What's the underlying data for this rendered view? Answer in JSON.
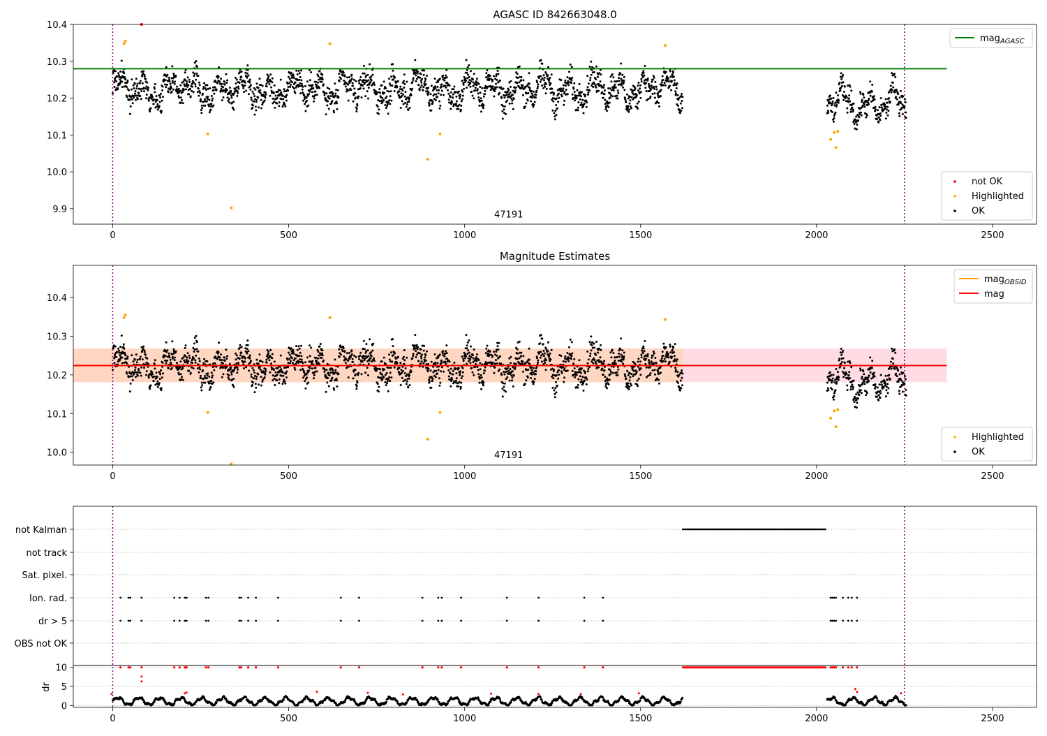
{
  "chart_data": [
    {
      "type": "scatter",
      "title": "AGASC ID 842663048.0",
      "xlabel": "",
      "ylabel": "",
      "xlim": [
        -112,
        2625
      ],
      "ylim": [
        9.858,
        10.4
      ],
      "xticks": [
        0,
        500,
        1000,
        1500,
        2000,
        2500
      ],
      "yticks": [
        9.9,
        10.0,
        10.1,
        10.2,
        10.3,
        10.4
      ],
      "ytick_labels": [
        "9.9",
        "10.0",
        "10.1",
        "10.2",
        "10.3",
        "10.4"
      ],
      "annotation": {
        "text": "47191",
        "x": 1125,
        "y": 9.876
      },
      "vlines": [
        0,
        2250
      ],
      "reference_line": {
        "name": "mag_AGASC",
        "value": 10.28,
        "x_range": [
          -112,
          2370
        ],
        "color": "#008000"
      },
      "legends": [
        {
          "position": "top-right",
          "entries": [
            {
              "label": "mag",
              "sub": "AGASC",
              "kind": "line",
              "color": "#008000"
            }
          ]
        },
        {
          "position": "bottom-right",
          "entries": [
            {
              "label": "not OK",
              "kind": "dot",
              "color": "#ff0000"
            },
            {
              "label": "Highlighted",
              "kind": "dot",
              "color": "#ffa500"
            },
            {
              "label": "OK",
              "kind": "dot",
              "color": "#000000"
            }
          ]
        }
      ],
      "series": [
        {
          "name": "not OK",
          "color": "#ff0000",
          "points": [
            [
              82,
              10.4
            ]
          ]
        },
        {
          "name": "Highlighted",
          "color": "#ffa500",
          "points": [
            [
              32,
              10.348
            ],
            [
              36,
              10.355
            ],
            [
              270,
              10.103
            ],
            [
              337,
              9.902
            ],
            [
              617,
              10.348
            ],
            [
              895,
              10.034
            ],
            [
              930,
              10.103
            ],
            [
              1570,
              10.343
            ],
            [
              2040,
              10.088
            ],
            [
              2050,
              10.107
            ],
            [
              2055,
              10.066
            ],
            [
              2060,
              10.11
            ]
          ]
        }
      ],
      "ok_segments": [
        {
          "x": [
            0,
            1620
          ],
          "mean": 10.225,
          "amp": 0.045,
          "noise": 0.028
        },
        {
          "x": [
            2030,
            2255
          ],
          "mean": 10.185,
          "amp": 0.05,
          "noise": 0.025
        }
      ]
    },
    {
      "type": "scatter",
      "title": "Magnitude Estimates",
      "xlabel": "",
      "ylabel": "",
      "xlim": [
        -112,
        2625
      ],
      "ylim": [
        9.967,
        10.483
      ],
      "xticks": [
        0,
        500,
        1000,
        1500,
        2000,
        2500
      ],
      "yticks": [
        10.0,
        10.1,
        10.2,
        10.3,
        10.4
      ],
      "ytick_labels": [
        "10.0",
        "10.1",
        "10.2",
        "10.3",
        "10.4"
      ],
      "annotation": {
        "text": "47191",
        "x": 1125,
        "y": 9.985
      },
      "vlines": [
        0,
        2250
      ],
      "mag_line": {
        "value": 10.224,
        "x_range": [
          -112,
          2370
        ],
        "color": "#ff0000"
      },
      "mag_band": {
        "low": 10.181,
        "high": 10.268,
        "x_range": [
          -112,
          2370
        ],
        "color": "#ffdce4"
      },
      "obsid_band": {
        "low": 10.181,
        "high": 10.268,
        "x_range": [
          -112,
          1620
        ],
        "color": "#ffd6c2"
      },
      "legends": [
        {
          "position": "top-right",
          "entries": [
            {
              "label": "mag",
              "sub": "OBSID",
              "kind": "line",
              "color": "#ffa500"
            },
            {
              "label": "mag",
              "kind": "line",
              "color": "#ff0000"
            }
          ]
        },
        {
          "position": "bottom-right",
          "entries": [
            {
              "label": "Highlighted",
              "kind": "dot",
              "color": "#ffa500"
            },
            {
              "label": "OK",
              "kind": "dot",
              "color": "#000000"
            }
          ]
        }
      ],
      "series": [
        {
          "name": "Highlighted",
          "color": "#ffa500",
          "points": [
            [
              32,
              10.348
            ],
            [
              36,
              10.355
            ],
            [
              270,
              10.103
            ],
            [
              337,
              9.97
            ],
            [
              617,
              10.348
            ],
            [
              895,
              10.034
            ],
            [
              930,
              10.103
            ],
            [
              1570,
              10.343
            ],
            [
              2040,
              10.088
            ],
            [
              2050,
              10.107
            ],
            [
              2055,
              10.066
            ],
            [
              2060,
              10.11
            ]
          ]
        }
      ],
      "ok_segments": [
        {
          "x": [
            0,
            1620
          ],
          "mean": 10.225,
          "amp": 0.045,
          "noise": 0.028
        },
        {
          "x": [
            2030,
            2255
          ],
          "mean": 10.185,
          "amp": 0.05,
          "noise": 0.025
        }
      ]
    },
    {
      "type": "scatter",
      "title": "",
      "xlim": [
        -112,
        2625
      ],
      "xticks": [
        0,
        500,
        1000,
        1500,
        2000,
        2500
      ],
      "vlines": [
        0,
        2250
      ],
      "flag_rows": [
        "not Kalman",
        "not track",
        "Sat. pixel.",
        "Ion. rad.",
        "dr > 5",
        "OBS not OK"
      ],
      "flags": {
        "not Kalman": {
          "range": [
            1620,
            2025
          ]
        },
        "Ion. rad.": {
          "x": [
            22,
            45,
            50,
            82,
            175,
            190,
            205,
            210,
            265,
            272,
            360,
            365,
            385,
            407,
            470,
            648,
            700,
            880,
            925,
            935,
            990,
            1120,
            1210,
            1340,
            1393,
            2040,
            2045,
            2050,
            2055,
            2075,
            2090,
            2100,
            2115
          ]
        },
        "dr > 5": {
          "x": [
            22,
            45,
            50,
            82,
            175,
            190,
            205,
            210,
            265,
            272,
            360,
            365,
            385,
            407,
            470,
            648,
            700,
            880,
            925,
            935,
            990,
            1120,
            1210,
            1340,
            1393,
            2040,
            2045,
            2050,
            2055,
            2075,
            2090,
            2100,
            2115
          ]
        }
      },
      "dr": {
        "ylabel": "dr",
        "ylim": [
          -0.5,
          10.5
        ],
        "yticks": [
          0,
          5,
          10
        ],
        "ytick_labels": [
          "0",
          "5",
          "10"
        ],
        "clip_value": 10,
        "normal_segments": [
          [
            0,
            1620
          ],
          [
            2030,
            2255
          ]
        ],
        "red_points": [
          [
            -3,
            3
          ],
          [
            82,
            6.3
          ],
          [
            82,
            7.6
          ],
          [
            205,
            3.2
          ],
          [
            210,
            3.4
          ],
          [
            580,
            3.6
          ],
          [
            725,
            3.3
          ],
          [
            825,
            2.9
          ],
          [
            1075,
            3.1
          ],
          [
            1210,
            3.0
          ],
          [
            1330,
            3.0
          ],
          [
            1495,
            3.2
          ],
          [
            2110,
            4.3
          ],
          [
            2115,
            3.5
          ],
          [
            2240,
            3.2
          ]
        ]
      }
    }
  ]
}
